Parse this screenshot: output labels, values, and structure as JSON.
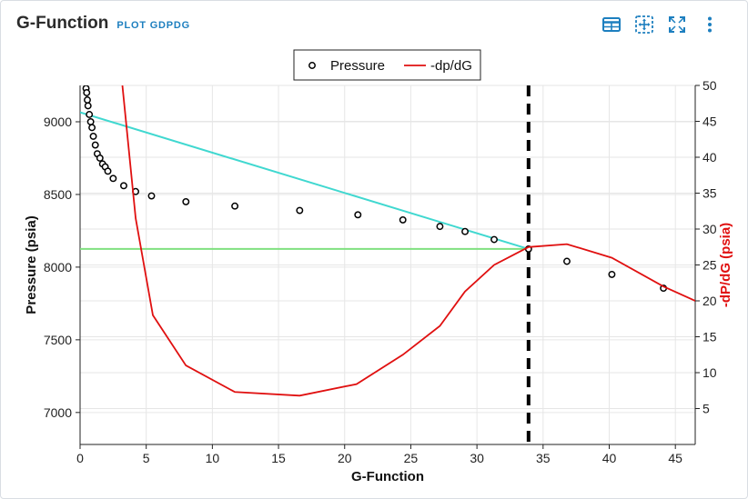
{
  "header": {
    "title": "G-Function",
    "subtitle": "PLOT GDPDG"
  },
  "toolbar": {
    "icons": [
      "table-icon",
      "pan-icon",
      "fullscreen-icon",
      "more-icon"
    ]
  },
  "colors": {
    "pressure": "#000000",
    "dpdg": "#e01010",
    "line_cyan": "#40d8d0",
    "line_green": "#80e080",
    "accent": "#1d7fbf"
  },
  "chart_data": {
    "type": "scatter",
    "title": "",
    "xlabel": "G-Function",
    "ylabel": "Pressure (psia)",
    "y2label": "-dP/dG (psia)",
    "xlim": [
      0,
      46.5
    ],
    "ylim": [
      6780,
      9250
    ],
    "y2lim": [
      0,
      50
    ],
    "x_ticks": [
      0,
      5,
      10,
      15,
      20,
      25,
      30,
      35,
      40,
      45
    ],
    "y_ticks": [
      7000,
      7500,
      8000,
      8500,
      9000
    ],
    "y2_ticks": [
      5,
      10,
      15,
      20,
      25,
      30,
      35,
      40,
      45,
      50
    ],
    "legend": {
      "position": "top-center"
    },
    "series": [
      {
        "name": "Pressure",
        "axis": "left",
        "style": "markers",
        "x": [
          0.45,
          0.5,
          0.55,
          0.6,
          0.7,
          0.8,
          0.9,
          1.0,
          1.15,
          1.3,
          1.5,
          1.7,
          1.9,
          2.1,
          2.5,
          3.3,
          4.2,
          5.4,
          8.0,
          11.7,
          16.6,
          21.0,
          24.4,
          27.2,
          29.1,
          31.3,
          33.9,
          36.8,
          40.2,
          44.1
        ],
        "y": [
          9230,
          9200,
          9150,
          9110,
          9050,
          9000,
          8960,
          8900,
          8840,
          8780,
          8750,
          8710,
          8690,
          8660,
          8610,
          8560,
          8520,
          8490,
          8450,
          8420,
          8390,
          8360,
          8325,
          8280,
          8245,
          8190,
          8125,
          8040,
          7950,
          7855
        ]
      },
      {
        "name": "-dp/dG",
        "axis": "right",
        "style": "line",
        "x": [
          3.2,
          4.2,
          5.5,
          8.0,
          11.7,
          16.6,
          20.9,
          24.4,
          27.2,
          29.1,
          31.3,
          33.9,
          36.8,
          40.2,
          44.1,
          46.5
        ],
        "y": [
          50,
          31.5,
          18,
          11,
          7.3,
          6.8,
          8.4,
          12.5,
          16.5,
          21.3,
          25,
          27.5,
          27.9,
          26,
          22,
          20
        ]
      }
    ],
    "reference_lines": [
      {
        "kind": "diagonal",
        "from": [
          0,
          9065
        ],
        "to": [
          33.9,
          8125
        ]
      },
      {
        "kind": "horizontal",
        "y": 8125,
        "x_range": [
          0,
          33.9
        ]
      },
      {
        "kind": "vertical-dashed",
        "x": 33.9
      }
    ]
  }
}
